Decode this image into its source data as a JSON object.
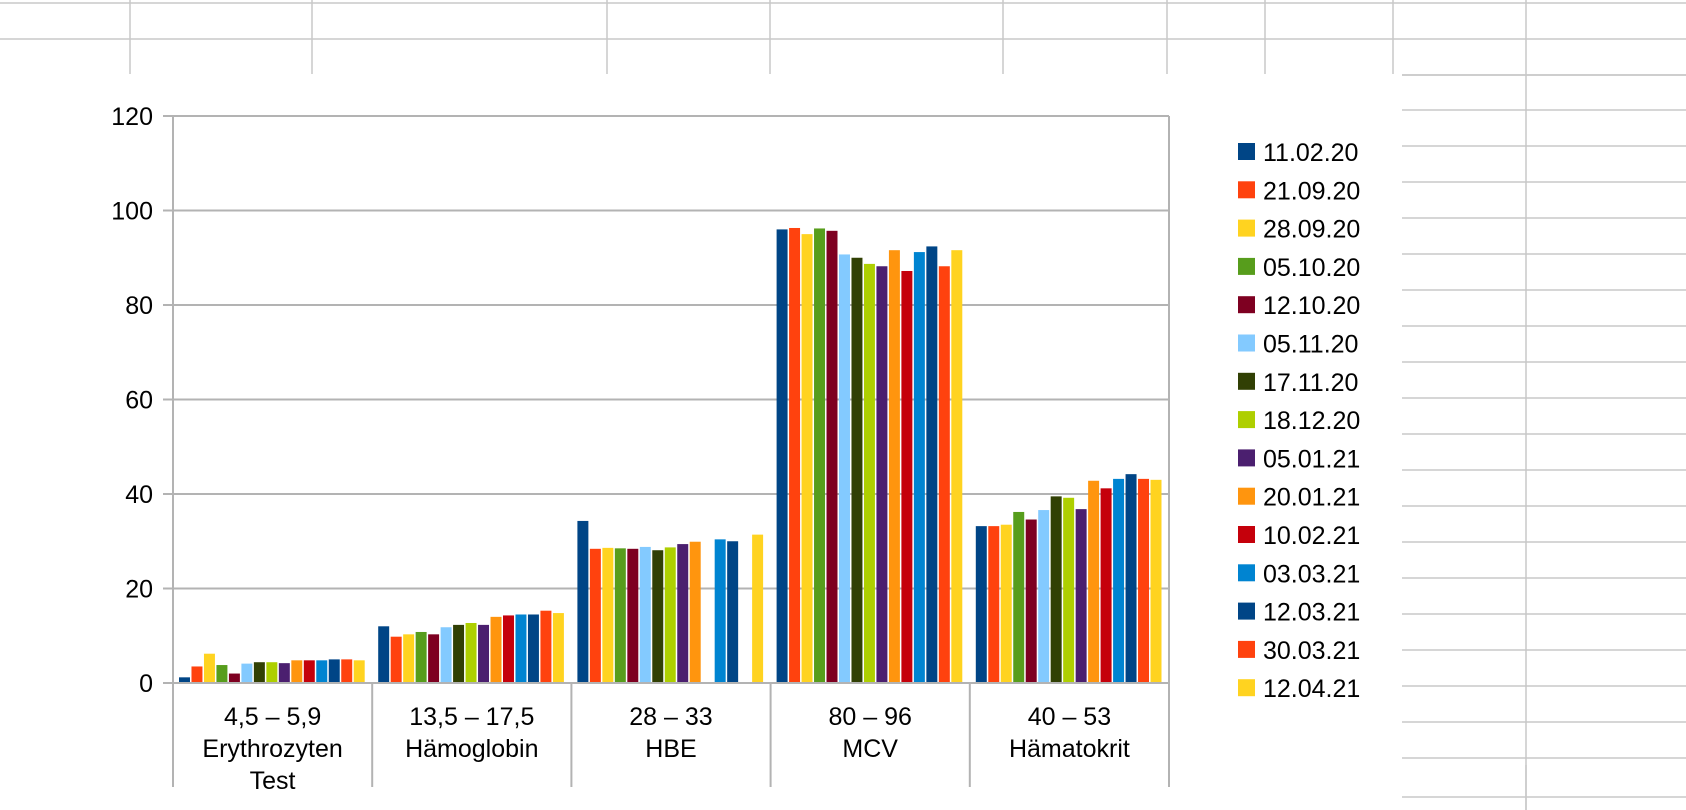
{
  "chart_data": {
    "type": "bar",
    "title": "",
    "xlabel": "",
    "ylabel": "",
    "ylim": [
      0,
      120
    ],
    "yticks": [
      0,
      20,
      40,
      60,
      80,
      100,
      120
    ],
    "grid": true,
    "legend_position": "right",
    "categories": [
      {
        "range": "4,5 – 5,9",
        "name": "Erythrozyten",
        "name2": "Test"
      },
      {
        "range": "13,5 – 17,5",
        "name": "Hämoglobin",
        "name2": ""
      },
      {
        "range": "28 – 33",
        "name": "HBE",
        "name2": ""
      },
      {
        "range": "80 – 96",
        "name": "MCV",
        "name2": ""
      },
      {
        "range": "40 – 53",
        "name": "Hämatokrit",
        "name2": ""
      }
    ],
    "series": [
      {
        "name": "11.02.20",
        "color": "#004586",
        "values": [
          1.2,
          12.0,
          34.3,
          96.0,
          33.2
        ]
      },
      {
        "name": "21.09.20",
        "color": "#FF420E",
        "values": [
          3.5,
          9.8,
          28.4,
          96.3,
          33.2
        ]
      },
      {
        "name": "28.09.20",
        "color": "#FFD320",
        "values": [
          6.2,
          10.3,
          28.6,
          95.0,
          33.5
        ]
      },
      {
        "name": "05.10.20",
        "color": "#579D1C",
        "values": [
          3.8,
          10.8,
          28.5,
          96.2,
          36.2
        ]
      },
      {
        "name": "12.10.20",
        "color": "#7E0021",
        "values": [
          2.0,
          10.3,
          28.4,
          95.7,
          34.6
        ]
      },
      {
        "name": "05.11.20",
        "color": "#83CAFF",
        "values": [
          4.1,
          11.8,
          28.8,
          90.7,
          36.6
        ]
      },
      {
        "name": "17.11.20",
        "color": "#314004",
        "values": [
          4.4,
          12.3,
          28.1,
          90.0,
          39.5
        ]
      },
      {
        "name": "18.12.20",
        "color": "#AECF00",
        "values": [
          4.4,
          12.7,
          28.7,
          88.7,
          39.2
        ]
      },
      {
        "name": "05.01.21",
        "color": "#4B1F6F",
        "values": [
          4.2,
          12.3,
          29.4,
          88.2,
          36.8
        ]
      },
      {
        "name": "20.01.21",
        "color": "#FF950E",
        "values": [
          4.8,
          14.0,
          29.9,
          91.6,
          42.8
        ]
      },
      {
        "name": "10.02.21",
        "color": "#C5000B",
        "values": [
          4.8,
          14.3,
          null,
          87.2,
          41.2
        ]
      },
      {
        "name": "03.03.21",
        "color": "#0084D1",
        "values": [
          4.8,
          14.5,
          30.4,
          91.2,
          43.2
        ]
      },
      {
        "name": "12.03.21",
        "color": "#004586",
        "values": [
          5.0,
          14.5,
          30.0,
          92.4,
          44.2
        ]
      },
      {
        "name": "30.03.21",
        "color": "#FF420E",
        "values": [
          5.0,
          15.3,
          null,
          88.2,
          43.2
        ]
      },
      {
        "name": "12.04.21",
        "color": "#FFD320",
        "values": [
          4.8,
          14.8,
          31.4,
          91.6,
          43.0
        ]
      }
    ]
  }
}
